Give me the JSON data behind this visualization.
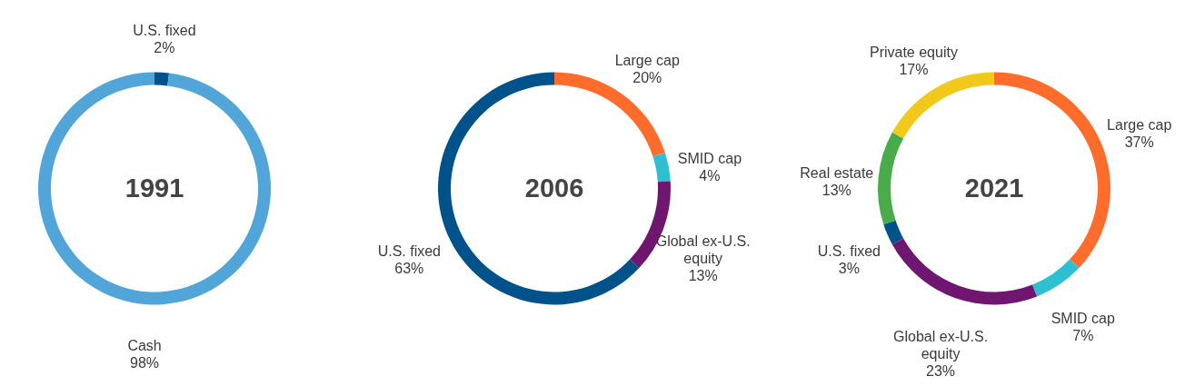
{
  "chart_data": [
    {
      "type": "donut",
      "title": "1991",
      "categories": [
        "U.S. fixed",
        "Cash"
      ],
      "values": [
        2,
        98
      ],
      "colors": [
        "#00538a",
        "#52a5d8"
      ],
      "value_labels": [
        "2%",
        "98%"
      ]
    },
    {
      "type": "donut",
      "title": "2006",
      "categories": [
        "Large cap",
        "SMID cap",
        "Global ex-U.S. equity",
        "U.S. fixed"
      ],
      "values": [
        20,
        4,
        13,
        63
      ],
      "colors": [
        "#ff6c2c",
        "#2ec0d0",
        "#6f1770",
        "#00538a"
      ],
      "value_labels": [
        "20%",
        "4%",
        "13%",
        "63%"
      ]
    },
    {
      "type": "donut",
      "title": "2021",
      "categories": [
        "Large cap",
        "SMID cap",
        "Global ex-U.S. equity",
        "U.S. fixed",
        "Real estate",
        "Private equity"
      ],
      "values": [
        37,
        7,
        23,
        3,
        13,
        17
      ],
      "colors": [
        "#ff6c2c",
        "#2ec0d0",
        "#6f1770",
        "#00538a",
        "#4aab4a",
        "#f0c91a"
      ],
      "value_labels": [
        "37%",
        "7%",
        "23%",
        "3%",
        "13%",
        "17%"
      ]
    }
  ]
}
